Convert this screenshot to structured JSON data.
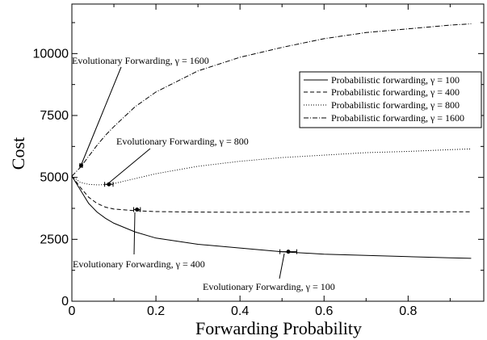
{
  "chart_data": {
    "type": "line",
    "title": "",
    "xlabel": "Forwarding Probability",
    "ylabel": "Cost",
    "xlim": [
      0,
      0.98
    ],
    "ylim": [
      0,
      12000
    ],
    "x_ticks": [
      "0",
      "0.2",
      "0.4",
      "0.6",
      "0.8"
    ],
    "y_ticks": [
      "0",
      "2500",
      "5000",
      "7500",
      "10000"
    ],
    "x_tick_values": [
      0,
      0.2,
      0.4,
      0.6,
      0.8
    ],
    "y_tick_values": [
      0,
      2500,
      5000,
      7500,
      10000
    ],
    "grid": false,
    "legend_position": "right",
    "series": [
      {
        "name": "Probabilistic forwarding, γ = 100",
        "dash": "solid",
        "x": [
          0.0,
          0.02,
          0.04,
          0.06,
          0.08,
          0.1,
          0.15,
          0.2,
          0.3,
          0.4,
          0.5,
          0.6,
          0.7,
          0.8,
          0.9,
          0.95
        ],
        "y": [
          5050,
          4500,
          3950,
          3600,
          3350,
          3150,
          2800,
          2550,
          2300,
          2150,
          2000,
          1900,
          1850,
          1800,
          1750,
          1730
        ]
      },
      {
        "name": "Probabilistic forwarding, γ = 400",
        "dash": "dashed",
        "x": [
          0.0,
          0.02,
          0.04,
          0.06,
          0.08,
          0.1,
          0.15,
          0.2,
          0.3,
          0.4,
          0.5,
          0.6,
          0.7,
          0.8,
          0.9,
          0.95
        ],
        "y": [
          5050,
          4600,
          4200,
          3950,
          3800,
          3720,
          3660,
          3620,
          3600,
          3590,
          3590,
          3600,
          3600,
          3600,
          3610,
          3610
        ]
      },
      {
        "name": "Probabilistic forwarding, γ = 800",
        "dash": "dotted",
        "x": [
          0.0,
          0.02,
          0.04,
          0.06,
          0.08,
          0.1,
          0.15,
          0.2,
          0.3,
          0.4,
          0.5,
          0.6,
          0.7,
          0.8,
          0.9,
          0.95
        ],
        "y": [
          5050,
          4800,
          4720,
          4700,
          4710,
          4750,
          4950,
          5150,
          5450,
          5650,
          5800,
          5900,
          6000,
          6050,
          6120,
          6150
        ]
      },
      {
        "name": "Probabilistic forwarding, γ = 1600",
        "dash": "dashdot",
        "x": [
          0.0,
          0.02,
          0.04,
          0.06,
          0.08,
          0.1,
          0.15,
          0.2,
          0.3,
          0.4,
          0.5,
          0.6,
          0.7,
          0.8,
          0.9,
          0.95
        ],
        "y": [
          5050,
          5400,
          5850,
          6300,
          6700,
          7050,
          7850,
          8450,
          9300,
          9850,
          10250,
          10600,
          10850,
          11000,
          11150,
          11200
        ]
      }
    ],
    "evolutionary_points": [
      {
        "x": 0.515,
        "y": 2000,
        "xerr": 0.02
      },
      {
        "x": 0.155,
        "y": 3700,
        "xerr": 0.008
      },
      {
        "x": 0.088,
        "y": 4720,
        "xerr": 0.01
      },
      {
        "x": 0.022,
        "y": 5480,
        "xerr": 0.003
      }
    ],
    "annotations": [
      "Evolutionary Forwarding, γ = 100",
      "Evolutionary Forwarding, γ = 400",
      "Evolutionary Forwarding, γ = 800",
      "Evolutionary Forwarding, γ = 1600"
    ]
  }
}
